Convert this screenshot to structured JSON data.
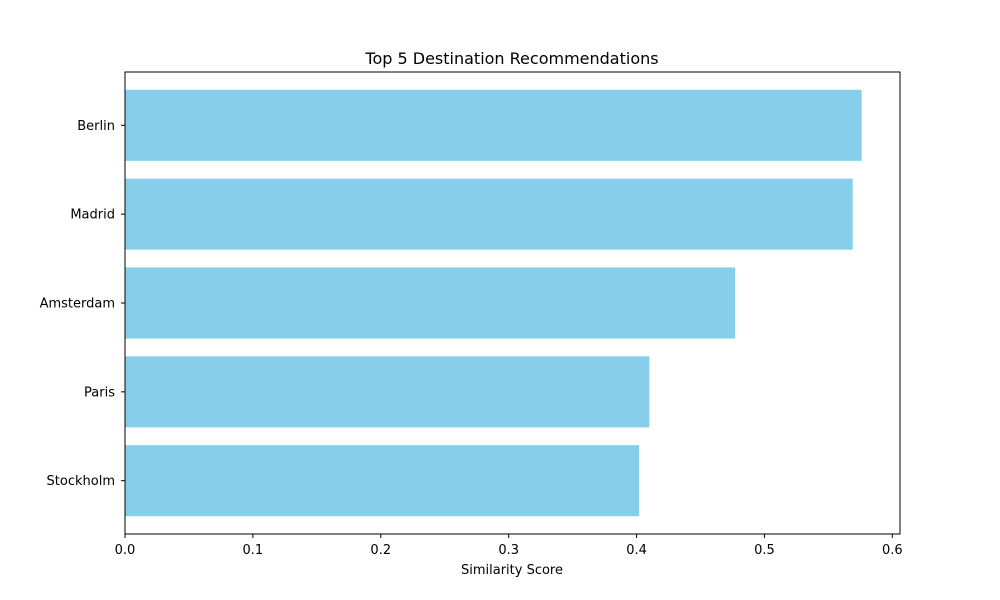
{
  "chart_data": {
    "type": "bar",
    "orientation": "horizontal",
    "title": "Top 5 Destination Recommendations",
    "xlabel": "Similarity Score",
    "ylabel": "",
    "categories": [
      "Berlin",
      "Madrid",
      "Amsterdam",
      "Paris",
      "Stockholm"
    ],
    "values": [
      0.576,
      0.569,
      0.477,
      0.41,
      0.402
    ],
    "xlim": [
      0,
      0.606
    ],
    "xticks": [
      "0.0",
      "0.1",
      "0.2",
      "0.3",
      "0.4",
      "0.5",
      "0.6"
    ],
    "bar_color": "#87CEEB",
    "grid": false,
    "legend": "none"
  }
}
